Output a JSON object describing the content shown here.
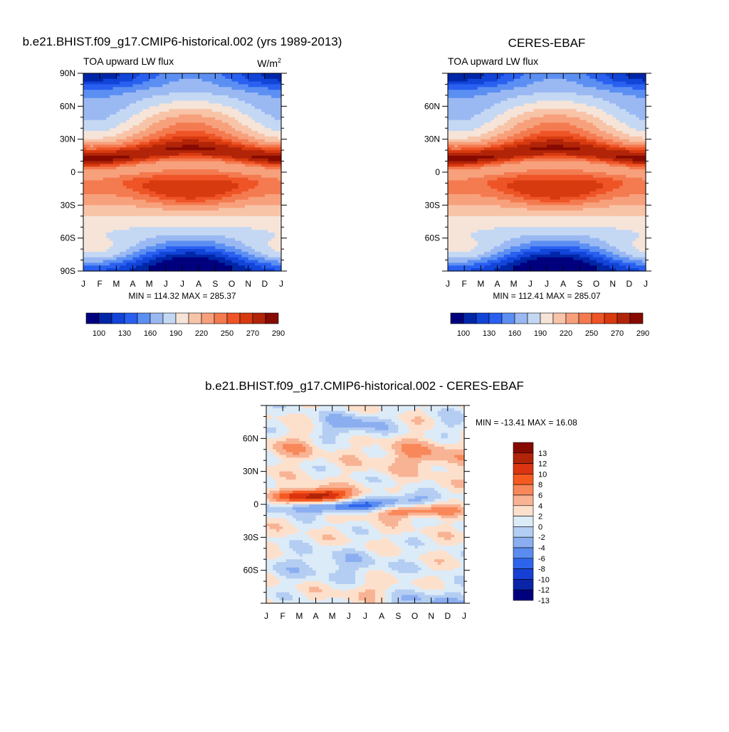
{
  "chart_data": [
    {
      "type": "heatmap",
      "title": "b.e21.BHIST.f09_g17.CMIP6-historical.002 (yrs 1989-2013)",
      "subtitle": "TOA upward LW flux",
      "units": "W/m",
      "units_sup": "2",
      "x_ticks": [
        "J",
        "F",
        "M",
        "A",
        "M",
        "J",
        "J",
        "A",
        "S",
        "O",
        "N",
        "D",
        "J"
      ],
      "y_ticks": [
        "90N",
        "60N",
        "30N",
        "0",
        "30S",
        "60S",
        "90S"
      ],
      "ylim": [
        -90,
        90
      ],
      "stats": "MIN = 114.32 MAX = 285.37",
      "colorbar_labels": [
        "100",
        "130",
        "160",
        "190",
        "220",
        "250",
        "270",
        "290"
      ],
      "peaks": {
        "nh_tropics": 285,
        "sh_subtropics": 280,
        "antarctic": 114,
        "arctic_winter": 160
      }
    },
    {
      "type": "heatmap",
      "title": "CERES-EBAF",
      "subtitle": "TOA upward LW flux",
      "x_ticks": [
        "J",
        "F",
        "M",
        "A",
        "M",
        "J",
        "J",
        "A",
        "S",
        "O",
        "N",
        "D",
        "J"
      ],
      "y_ticks": [
        "60N",
        "30N",
        "0",
        "30S",
        "60S"
      ],
      "ylim": [
        -90,
        90
      ],
      "stats": "MIN = 112.41 MAX = 285.07",
      "colorbar_labels": [
        "100",
        "130",
        "160",
        "190",
        "220",
        "250",
        "270",
        "290"
      ],
      "peaks": {
        "nh_tropics": 285,
        "sh_subtropics": 280,
        "antarctic": 112,
        "arctic_winter": 160
      }
    },
    {
      "type": "heatmap",
      "title": "b.e21.BHIST.f09_g17.CMIP6-historical.002 - CERES-EBAF",
      "x_ticks": [
        "J",
        "F",
        "M",
        "A",
        "M",
        "J",
        "J",
        "A",
        "S",
        "O",
        "N",
        "D",
        "J"
      ],
      "y_ticks": [
        "60N",
        "30N",
        "0",
        "30S",
        "60S"
      ],
      "ylim": [
        -90,
        90
      ],
      "stats": "MIN = -13.41 MAX =  16.08",
      "colorbar_labels": [
        "13",
        "12",
        "10",
        "8",
        "6",
        "4",
        "2",
        "0",
        "-2",
        "-4",
        "-6",
        "-8",
        "-10",
        "-12",
        "-13"
      ]
    }
  ],
  "colors": {
    "abs_palette": [
      "#00007f",
      "#0026a8",
      "#1244d8",
      "#2a60f0",
      "#5c8ff2",
      "#9ab8f2",
      "#c4d8f4",
      "#f6e4d8",
      "#f8c4a8",
      "#f7a07c",
      "#f47a50",
      "#ee5426",
      "#d83a10",
      "#b22408",
      "#870a00"
    ],
    "diff_palette": [
      "#870a00",
      "#b22408",
      "#dc3410",
      "#f45a20",
      "#f8885a",
      "#f8b394",
      "#fde0cc",
      "#dcebf8",
      "#b4cdf2",
      "#8aaef0",
      "#5a8cf0",
      "#2e64ec",
      "#1640d4",
      "#0a24a8",
      "#00007f"
    ]
  }
}
